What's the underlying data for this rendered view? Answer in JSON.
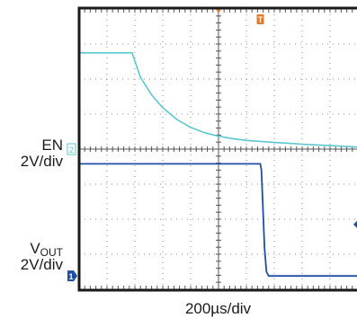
{
  "chart_data": {
    "type": "line",
    "x_scale_label": "200µs/div",
    "x_divisions": 10,
    "y_divisions": 8,
    "trigger_marker": "T",
    "series": [
      {
        "name": "EN",
        "channel_marker": "2",
        "scale": "2V/div",
        "color": "#5cc7cf",
        "points": [
          [
            0,
            6.75
          ],
          [
            0.25,
            6.75
          ],
          [
            0.5,
            6.75
          ],
          [
            0.75,
            6.75
          ],
          [
            1,
            6.75
          ],
          [
            1.25,
            6.75
          ],
          [
            1.5,
            6.75
          ],
          [
            1.75,
            6.75
          ],
          [
            1.9,
            6.75
          ],
          [
            2.2,
            6.05
          ],
          [
            2.6,
            5.55
          ],
          [
            3,
            5.18
          ],
          [
            3.5,
            4.85
          ],
          [
            4,
            4.62
          ],
          [
            4.5,
            4.47
          ],
          [
            5,
            4.37
          ],
          [
            5.5,
            4.3
          ],
          [
            6,
            4.25
          ],
          [
            6.5,
            4.22
          ],
          [
            7,
            4.19
          ],
          [
            7.5,
            4.17
          ],
          [
            8,
            4.14
          ],
          [
            8.5,
            4.12
          ],
          [
            9,
            4.1
          ],
          [
            9.5,
            4.08
          ],
          [
            10,
            4.06
          ]
        ]
      },
      {
        "name": "VOUT",
        "channel_marker": "1",
        "scale": "2V/div",
        "color": "#1f4fa3",
        "points": [
          [
            0,
            3.58
          ],
          [
            1,
            3.58
          ],
          [
            2,
            3.58
          ],
          [
            3,
            3.58
          ],
          [
            4,
            3.58
          ],
          [
            5,
            3.58
          ],
          [
            6,
            3.58
          ],
          [
            6.5,
            3.58
          ],
          [
            6.54,
            3.4
          ],
          [
            6.6,
            2.2
          ],
          [
            6.65,
            1.2
          ],
          [
            6.72,
            0.5
          ],
          [
            6.8,
            0.38
          ],
          [
            7,
            0.38
          ],
          [
            7.5,
            0.38
          ],
          [
            8,
            0.38
          ],
          [
            9,
            0.38
          ],
          [
            10,
            0.38
          ]
        ]
      }
    ]
  },
  "labels": {
    "en_name": "EN",
    "en_scale": "2V/div",
    "vout_name_main": "V",
    "vout_name_sub": "OUT",
    "vout_scale": "2V/div"
  }
}
